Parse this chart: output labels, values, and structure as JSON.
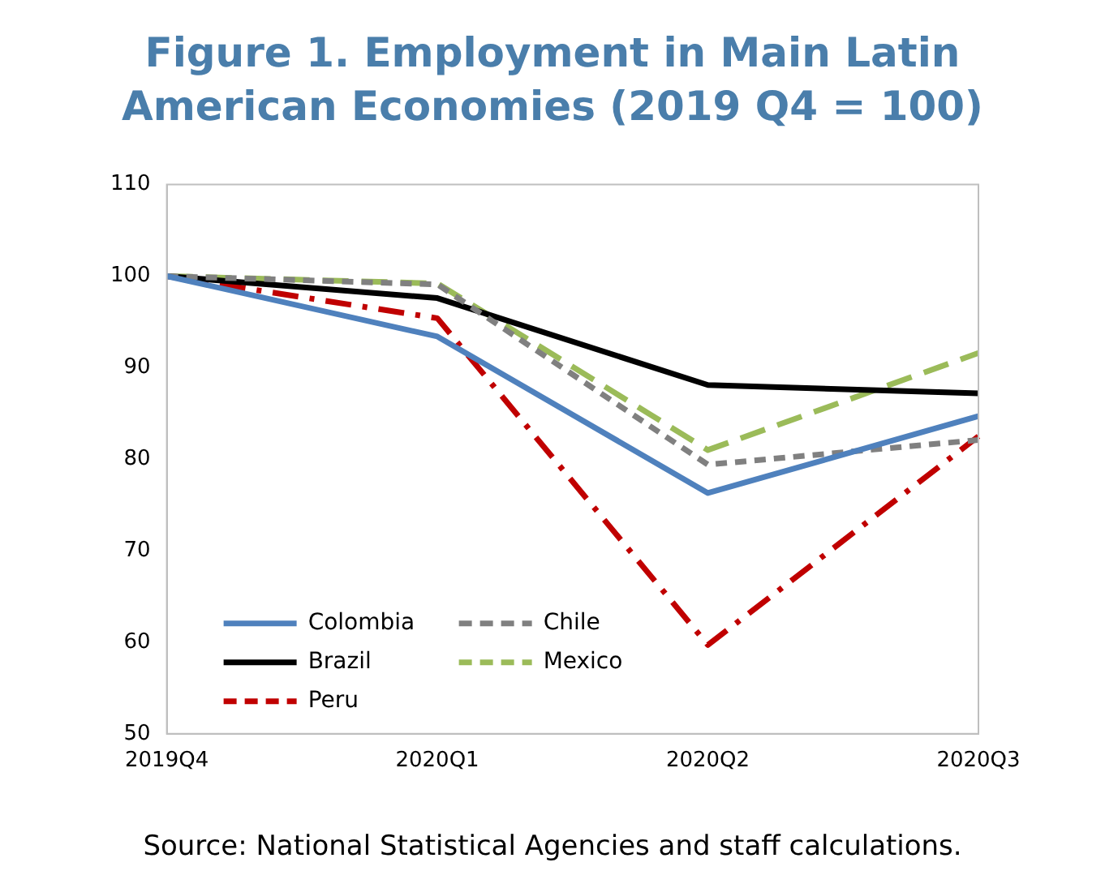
{
  "chart_data": {
    "type": "line",
    "title": "Figure 1. Employment in Main Latin American Economies (2019 Q4 = 100)",
    "categories": [
      "2019Q4",
      "2020Q1",
      "2020Q2",
      "2020Q3"
    ],
    "series": [
      {
        "name": "Colombia",
        "color": "#4f81bd",
        "line_style": "solid",
        "values": [
          100,
          93.4,
          76.3,
          84.7
        ]
      },
      {
        "name": "Chile",
        "color": "#808080",
        "line_style": "dashed",
        "values": [
          100,
          99.1,
          79.4,
          82.1
        ]
      },
      {
        "name": "Brazil",
        "color": "#000000",
        "line_style": "solid",
        "values": [
          100,
          97.6,
          88.1,
          87.2
        ]
      },
      {
        "name": "Mexico",
        "color": "#9bbb59",
        "line_style": "longdash",
        "values": [
          100,
          99.2,
          81.0,
          91.6
        ]
      },
      {
        "name": "Peru",
        "color": "#c00000",
        "line_style": "dashdot",
        "values": [
          100,
          95.4,
          59.7,
          82.5
        ]
      }
    ],
    "ylim": [
      50,
      110
    ],
    "yticks": [
      50,
      60,
      70,
      80,
      90,
      100,
      110
    ],
    "grid": false,
    "legend": "bottom left",
    "marker": "none",
    "annotations": [
      "Source: National Statistical Agencies and staff calculations."
    ]
  }
}
